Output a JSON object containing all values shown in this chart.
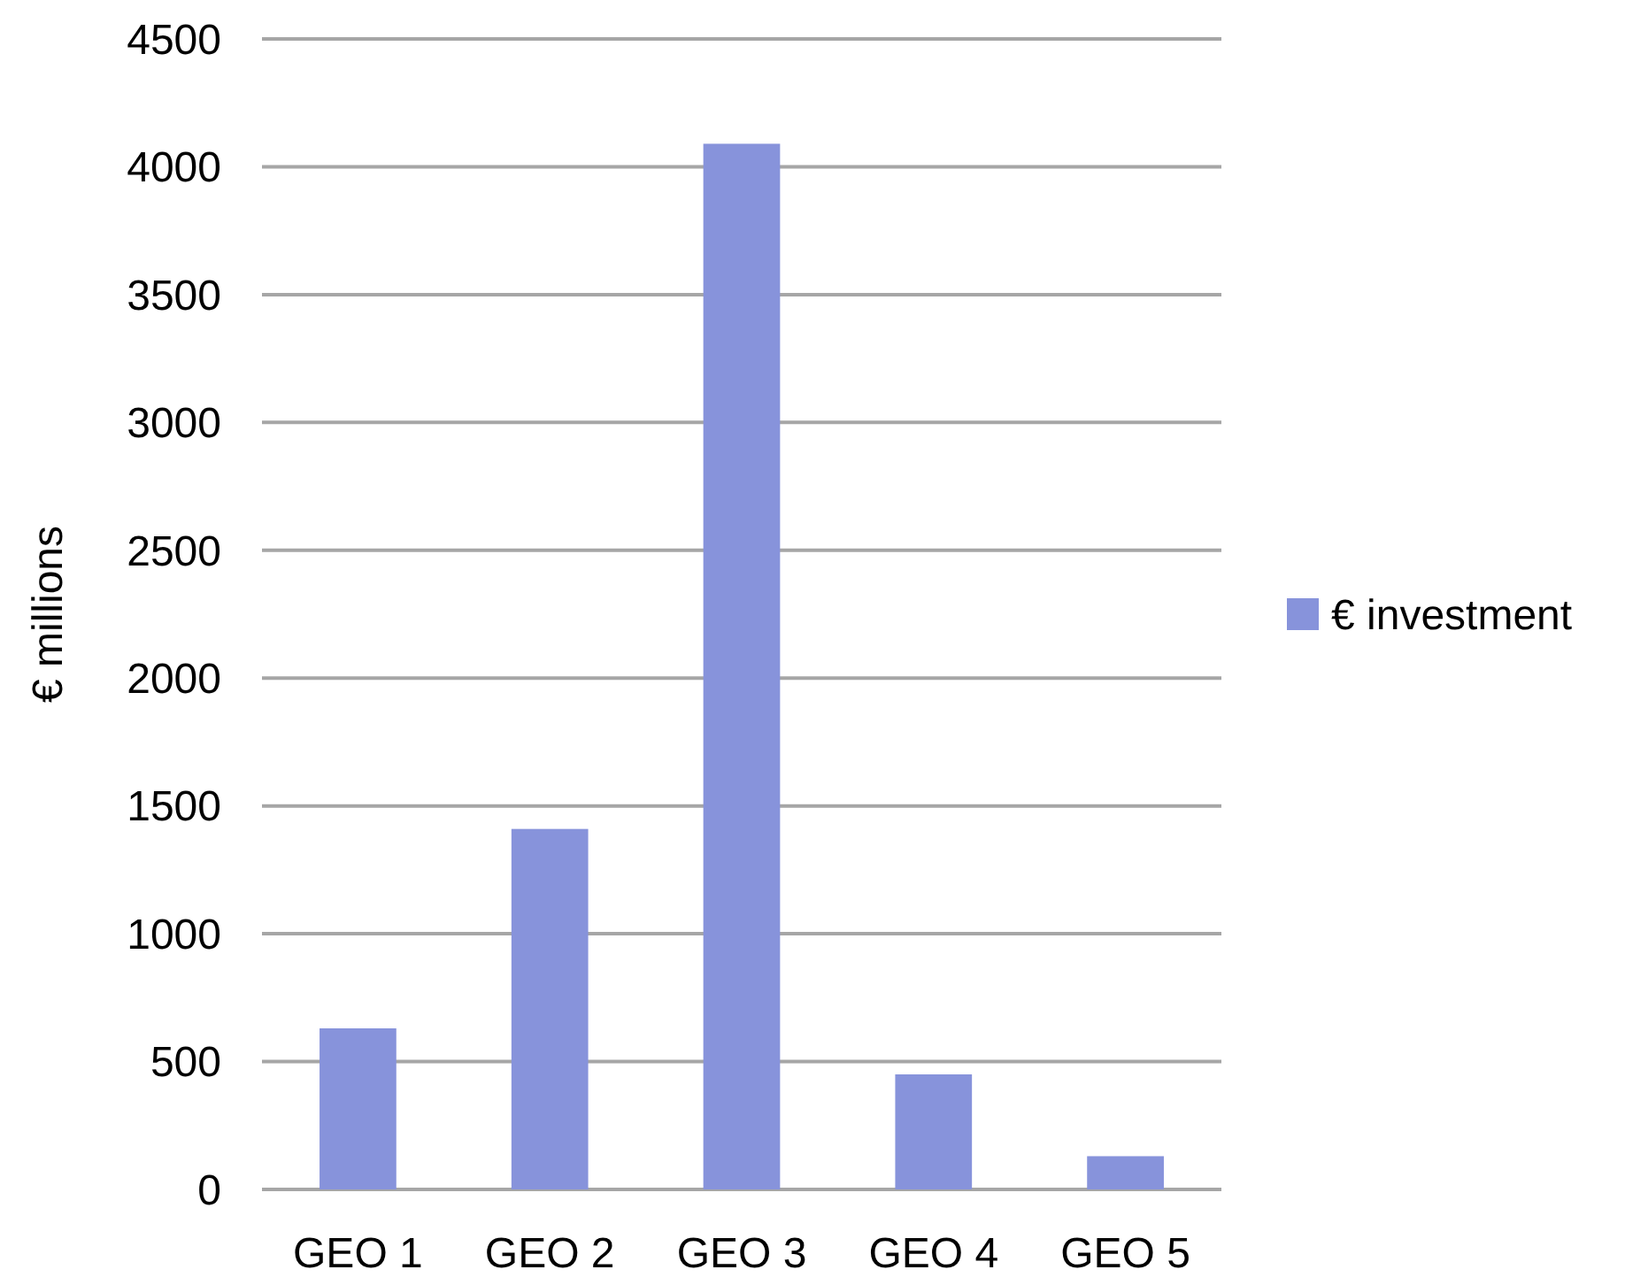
{
  "chart_data": {
    "type": "bar",
    "ylabel": "€ millions",
    "categories": [
      "GEO 1",
      "GEO 2",
      "GEO 3",
      "GEO 4",
      "GEO 5"
    ],
    "series": [
      {
        "name": "€ investment",
        "color": "#8793db",
        "values": [
          630,
          1410,
          4090,
          450,
          130
        ]
      }
    ],
    "ylim": [
      0,
      4500
    ],
    "yticks": [
      0,
      500,
      1000,
      1500,
      2000,
      2500,
      3000,
      3500,
      4000,
      4500
    ],
    "grid": "y",
    "legend": "right"
  }
}
